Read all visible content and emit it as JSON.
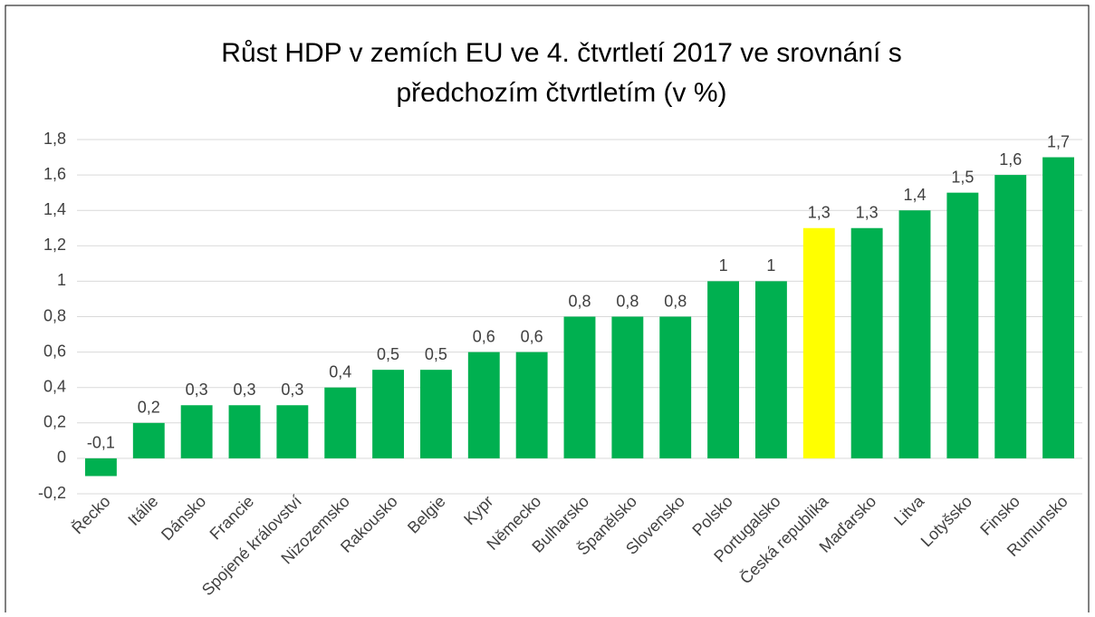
{
  "chart_data": {
    "type": "bar",
    "title": [
      "Růst HDP v zemích EU ve 4. čtvrtletí 2017 ve srovnání s",
      "předchozím čtvrtletím (v %)"
    ],
    "categories": [
      "Řecko",
      "Itálie",
      "Dánsko",
      "Francie",
      "Spojené království",
      "Nizozemsko",
      "Rakousko",
      "Belgie",
      "Kypr",
      "Německo",
      "Bulharsko",
      "Španělsko",
      "Slovensko",
      "Polsko",
      "Portugalsko",
      "Česká republika",
      "Maďarsko",
      "Litva",
      "Lotyšsko",
      "Finsko",
      "Rumunsko"
    ],
    "values": [
      -0.1,
      0.2,
      0.3,
      0.3,
      0.3,
      0.4,
      0.5,
      0.5,
      0.6,
      0.6,
      0.8,
      0.8,
      0.8,
      1,
      1,
      1.3,
      1.3,
      1.4,
      1.5,
      1.6,
      1.7
    ],
    "value_labels": [
      "-0,1",
      "0,2",
      "0,3",
      "0,3",
      "0,3",
      "0,4",
      "0,5",
      "0,5",
      "0,6",
      "0,6",
      "0,8",
      "0,8",
      "0,8",
      "1",
      "1",
      "1,3",
      "1,3",
      "1,4",
      "1,5",
      "1,6",
      "1,7"
    ],
    "colors": [
      "#00b050",
      "#00b050",
      "#00b050",
      "#00b050",
      "#00b050",
      "#00b050",
      "#00b050",
      "#00b050",
      "#00b050",
      "#00b050",
      "#00b050",
      "#00b050",
      "#00b050",
      "#00b050",
      "#00b050",
      "#ffff00",
      "#00b050",
      "#00b050",
      "#00b050",
      "#00b050",
      "#00b050"
    ],
    "ylim": [
      -0.2,
      1.8
    ],
    "yticks": [
      {
        "value": -0.2,
        "label": "-0,2"
      },
      0,
      {
        "value": 0.2,
        "label": "0,2"
      },
      {
        "value": 0.4,
        "label": "0,4"
      },
      {
        "value": 0.6,
        "label": "0,6"
      },
      {
        "value": 0.8,
        "label": "0,8"
      },
      1,
      {
        "value": 1.2,
        "label": "1,2"
      },
      {
        "value": 1.4,
        "label": "1,4"
      },
      {
        "value": 1.6,
        "label": "1,6"
      },
      {
        "value": 1.8,
        "label": "1,8"
      }
    ],
    "grid": true
  }
}
